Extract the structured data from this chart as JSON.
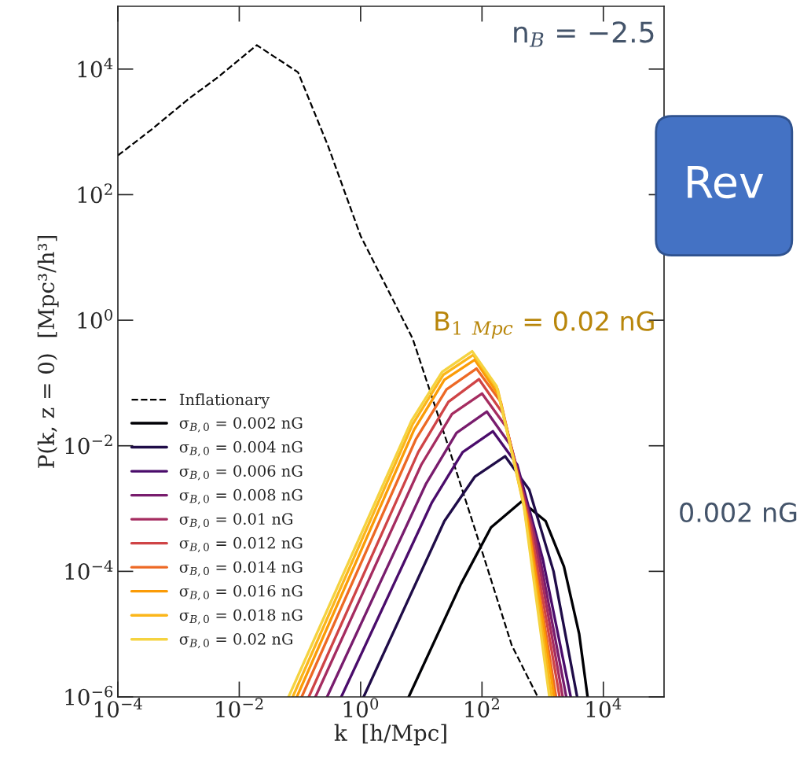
{
  "chart_data": {
    "type": "line",
    "xlabel": "k  [h/Mpc]",
    "ylabel": "P(k, z = 0)  [Mpc³/h³]",
    "log": "xy",
    "grid": false,
    "legend": "bottom left",
    "marker": "none",
    "xlim": [
      0.0001,
      100000
    ],
    "ylim": [
      1e-06,
      100000
    ],
    "xticks": [
      {
        "value": 0.0001,
        "label": "10$^{−4}$"
      },
      {
        "value": 0.01,
        "label": "10$^{−2}$"
      },
      {
        "value": 1,
        "label": "10$^{0}$"
      },
      {
        "value": 100,
        "label": "10$^{2}$"
      },
      {
        "value": 10000,
        "label": "10$^{4}$"
      }
    ],
    "yticks": [
      {
        "value": 1e-06,
        "label": "10$^{−6}$"
      },
      {
        "value": 0.0001,
        "label": "10$^{−4}$"
      },
      {
        "value": 0.01,
        "label": "10$^{−2}$"
      },
      {
        "value": 1,
        "label": "10$^{0}$"
      },
      {
        "value": 100,
        "label": "10$^{2}$"
      },
      {
        "value": 10000,
        "label": "10$^{4}$"
      }
    ],
    "annotations": [
      "n$_{B}$ = −2.5",
      "Rev",
      "B$_{1 Mpc}$ = 0.02 nG",
      "0.002 nG"
    ],
    "series": [
      {
        "name": "Inflationary",
        "color": "#000000",
        "line_style": "dashed",
        "x": [
          0.0001,
          0.00035,
          0.00155,
          0.0042,
          0.0195,
          0.093,
          0.29,
          1,
          7.2,
          26,
          100,
          310,
          830
        ],
        "values": [
          420,
          1070,
          3500,
          7100,
          24000,
          8900,
          600,
          22,
          0.51,
          0.012,
          0.00021,
          6.6e-06,
          1e-06
        ]
      },
      {
        "name": "σ$_{B,0}$ = 0.002 nG",
        "color": "#000004",
        "line_style": "solid",
        "x": [
          6.2,
          45,
          141,
          450,
          1120,
          2240,
          4000,
          5500
        ],
        "values": [
          1e-06,
          6.3e-05,
          0.0005,
          0.0013,
          0.00063,
          0.00012,
          1e-05,
          1e-06
        ]
      },
      {
        "name": "σ$_{B,0}$ = 0.004 nG",
        "color": "#1f0c48",
        "line_style": "solid",
        "x": [
          1.12,
          24,
          76,
          240,
          600,
          1510,
          3700
        ],
        "values": [
          1e-06,
          0.00063,
          0.0032,
          0.0068,
          0.002,
          0.0001,
          1e-06
        ]
      },
      {
        "name": "σ$_{B,0}$ = 0.006 nG",
        "color": "#4a0c6b",
        "line_style": "solid",
        "x": [
          0.48,
          15,
          48,
          151,
          380,
          1000,
          2900
        ],
        "values": [
          1e-06,
          0.00126,
          0.0079,
          0.017,
          0.005,
          0.00016,
          1e-06
        ]
      },
      {
        "name": "σ$_{B,0}$ = 0.008 nG",
        "color": "#781c6d",
        "line_style": "solid",
        "x": [
          0.28,
          12,
          38,
          120,
          300,
          830,
          2450
        ],
        "values": [
          1e-06,
          0.0025,
          0.016,
          0.035,
          0.01,
          0.00025,
          1e-06
        ]
      },
      {
        "name": "σ$_{B,0}$ = 0.01 nG",
        "color": "#a52c60",
        "line_style": "solid",
        "x": [
          0.18,
          10,
          32,
          100,
          250,
          710,
          2140
        ],
        "values": [
          1e-06,
          0.005,
          0.032,
          0.068,
          0.02,
          0.0004,
          1e-06
        ]
      },
      {
        "name": "σ$_{B,0}$ = 0.012 nG",
        "color": "#cf4446",
        "line_style": "solid",
        "x": [
          0.14,
          8.9,
          28,
          89,
          224,
          630,
          1900
        ],
        "values": [
          1e-06,
          0.0079,
          0.05,
          0.115,
          0.032,
          0.0005,
          1e-06
        ]
      },
      {
        "name": "σ$_{B,0}$ = 0.014 nG",
        "color": "#ed6925",
        "line_style": "solid",
        "x": [
          0.107,
          8.1,
          26,
          81,
          204,
          575,
          1660
        ],
        "values": [
          1e-06,
          0.0126,
          0.079,
          0.17,
          0.05,
          0.00063,
          1e-06
        ]
      },
      {
        "name": "σ$_{B,0}$ = 0.016 nG",
        "color": "#fb9b06",
        "line_style": "solid",
        "x": [
          0.089,
          7.6,
          24,
          76,
          190,
          540,
          1550
        ],
        "values": [
          1e-06,
          0.018,
          0.112,
          0.234,
          0.063,
          0.00079,
          1e-06
        ]
      },
      {
        "name": "σ$_{B,0}$ = 0.018 nG",
        "color": "#fbb61a",
        "line_style": "solid",
        "x": [
          0.076,
          7.2,
          23,
          72,
          182,
          500,
          1410
        ],
        "values": [
          1e-06,
          0.022,
          0.135,
          0.28,
          0.079,
          0.001,
          1e-06
        ]
      },
      {
        "name": "σ$_{B,0}$ = 0.02 nG",
        "color": "#f5d340",
        "line_style": "solid",
        "x": [
          0.065,
          6.9,
          22,
          69,
          174,
          480,
          1290
        ],
        "values": [
          1e-06,
          0.025,
          0.15,
          0.32,
          0.089,
          0.00126,
          1e-06
        ]
      }
    ]
  }
}
